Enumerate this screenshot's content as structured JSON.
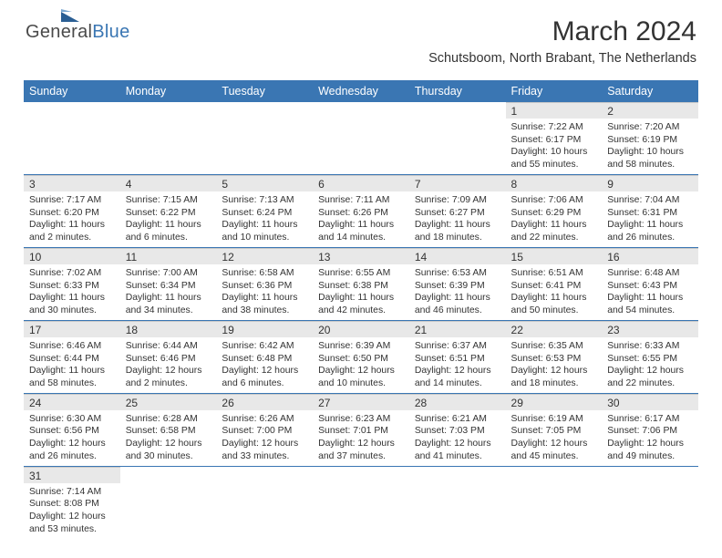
{
  "logo": {
    "general": "General",
    "blue": "Blue"
  },
  "title": "March 2024",
  "subtitle": "Schutsboom, North Brabant, The Netherlands",
  "day_headers": [
    "Sunday",
    "Monday",
    "Tuesday",
    "Wednesday",
    "Thursday",
    "Friday",
    "Saturday"
  ],
  "colors": {
    "header_bg": "#3a76b3",
    "daynum_bg": "#e8e8e8",
    "row_border": "#3a76b3",
    "text": "#333333",
    "page_bg": "#ffffff"
  },
  "grid": [
    [
      null,
      null,
      null,
      null,
      null,
      {
        "n": "1",
        "sr": "7:22 AM",
        "ss": "6:17 PM",
        "dl": "10 hours and 55 minutes."
      },
      {
        "n": "2",
        "sr": "7:20 AM",
        "ss": "6:19 PM",
        "dl": "10 hours and 58 minutes."
      }
    ],
    [
      {
        "n": "3",
        "sr": "7:17 AM",
        "ss": "6:20 PM",
        "dl": "11 hours and 2 minutes."
      },
      {
        "n": "4",
        "sr": "7:15 AM",
        "ss": "6:22 PM",
        "dl": "11 hours and 6 minutes."
      },
      {
        "n": "5",
        "sr": "7:13 AM",
        "ss": "6:24 PM",
        "dl": "11 hours and 10 minutes."
      },
      {
        "n": "6",
        "sr": "7:11 AM",
        "ss": "6:26 PM",
        "dl": "11 hours and 14 minutes."
      },
      {
        "n": "7",
        "sr": "7:09 AM",
        "ss": "6:27 PM",
        "dl": "11 hours and 18 minutes."
      },
      {
        "n": "8",
        "sr": "7:06 AM",
        "ss": "6:29 PM",
        "dl": "11 hours and 22 minutes."
      },
      {
        "n": "9",
        "sr": "7:04 AM",
        "ss": "6:31 PM",
        "dl": "11 hours and 26 minutes."
      }
    ],
    [
      {
        "n": "10",
        "sr": "7:02 AM",
        "ss": "6:33 PM",
        "dl": "11 hours and 30 minutes."
      },
      {
        "n": "11",
        "sr": "7:00 AM",
        "ss": "6:34 PM",
        "dl": "11 hours and 34 minutes."
      },
      {
        "n": "12",
        "sr": "6:58 AM",
        "ss": "6:36 PM",
        "dl": "11 hours and 38 minutes."
      },
      {
        "n": "13",
        "sr": "6:55 AM",
        "ss": "6:38 PM",
        "dl": "11 hours and 42 minutes."
      },
      {
        "n": "14",
        "sr": "6:53 AM",
        "ss": "6:39 PM",
        "dl": "11 hours and 46 minutes."
      },
      {
        "n": "15",
        "sr": "6:51 AM",
        "ss": "6:41 PM",
        "dl": "11 hours and 50 minutes."
      },
      {
        "n": "16",
        "sr": "6:48 AM",
        "ss": "6:43 PM",
        "dl": "11 hours and 54 minutes."
      }
    ],
    [
      {
        "n": "17",
        "sr": "6:46 AM",
        "ss": "6:44 PM",
        "dl": "11 hours and 58 minutes."
      },
      {
        "n": "18",
        "sr": "6:44 AM",
        "ss": "6:46 PM",
        "dl": "12 hours and 2 minutes."
      },
      {
        "n": "19",
        "sr": "6:42 AM",
        "ss": "6:48 PM",
        "dl": "12 hours and 6 minutes."
      },
      {
        "n": "20",
        "sr": "6:39 AM",
        "ss": "6:50 PM",
        "dl": "12 hours and 10 minutes."
      },
      {
        "n": "21",
        "sr": "6:37 AM",
        "ss": "6:51 PM",
        "dl": "12 hours and 14 minutes."
      },
      {
        "n": "22",
        "sr": "6:35 AM",
        "ss": "6:53 PM",
        "dl": "12 hours and 18 minutes."
      },
      {
        "n": "23",
        "sr": "6:33 AM",
        "ss": "6:55 PM",
        "dl": "12 hours and 22 minutes."
      }
    ],
    [
      {
        "n": "24",
        "sr": "6:30 AM",
        "ss": "6:56 PM",
        "dl": "12 hours and 26 minutes."
      },
      {
        "n": "25",
        "sr": "6:28 AM",
        "ss": "6:58 PM",
        "dl": "12 hours and 30 minutes."
      },
      {
        "n": "26",
        "sr": "6:26 AM",
        "ss": "7:00 PM",
        "dl": "12 hours and 33 minutes."
      },
      {
        "n": "27",
        "sr": "6:23 AM",
        "ss": "7:01 PM",
        "dl": "12 hours and 37 minutes."
      },
      {
        "n": "28",
        "sr": "6:21 AM",
        "ss": "7:03 PM",
        "dl": "12 hours and 41 minutes."
      },
      {
        "n": "29",
        "sr": "6:19 AM",
        "ss": "7:05 PM",
        "dl": "12 hours and 45 minutes."
      },
      {
        "n": "30",
        "sr": "6:17 AM",
        "ss": "7:06 PM",
        "dl": "12 hours and 49 minutes."
      }
    ],
    [
      {
        "n": "31",
        "sr": "7:14 AM",
        "ss": "8:08 PM",
        "dl": "12 hours and 53 minutes."
      },
      null,
      null,
      null,
      null,
      null,
      null
    ]
  ],
  "labels": {
    "sunrise": "Sunrise: ",
    "sunset": "Sunset: ",
    "daylight": "Daylight: "
  }
}
